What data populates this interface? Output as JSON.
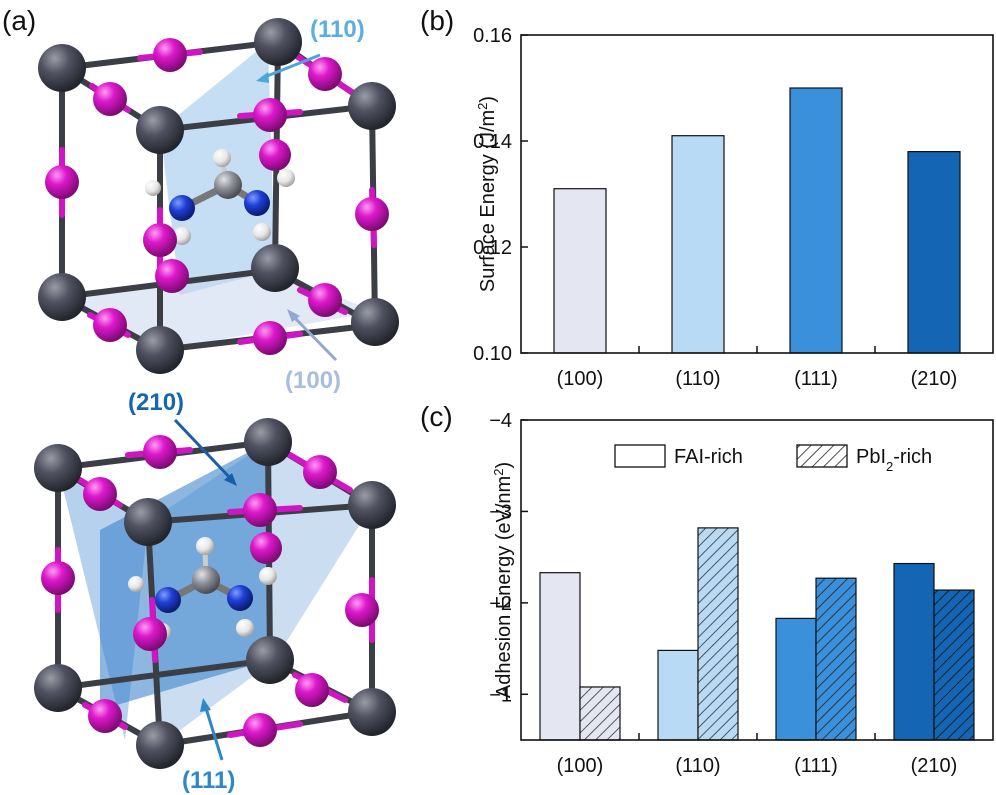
{
  "figure": {
    "panel_labels": [
      "(a)",
      "(b)",
      "(c)"
    ],
    "plane_labels": {
      "p110": "(110)",
      "p100": "(100)",
      "p210": "(210)",
      "p111": "(111)"
    },
    "plane_label_colors": {
      "p110": "#5aaee2",
      "p100": "#a9bedd",
      "p210": "#1565b0",
      "p111": "#2f86c8"
    },
    "atom_colors": {
      "lead": "#4b4d57",
      "iodine": "#d614c8",
      "nitrogen": "#1c3fd0",
      "carbon": "#8c8f96",
      "hydrogen": "#f2f2f2"
    }
  },
  "chart_data": [
    {
      "panel": "(b)",
      "type": "bar",
      "categories": [
        "(100)",
        "(110)",
        "(111)",
        "(210)"
      ],
      "values": [
        0.131,
        0.141,
        0.15,
        0.138
      ],
      "colors": [
        "#e4e7f1",
        "#b8daf4",
        "#3a90db",
        "#1466b4"
      ],
      "ylabel_main": "Surface Energy (J/m",
      "ylabel_sup": "2",
      "ylabel_close": ")",
      "ylim": [
        0.1,
        0.16
      ],
      "yticks": [
        "0.10",
        "0.12",
        "0.14",
        "0.16"
      ],
      "ytick_values": [
        0.1,
        0.12,
        0.14,
        0.16
      ]
    },
    {
      "panel": "(c)",
      "type": "bar",
      "categories": [
        "(100)",
        "(110)",
        "(111)",
        "(210)"
      ],
      "series": [
        {
          "name": "FAI-rich",
          "values": [
            -2.33,
            -1.48,
            -1.83,
            -2.43
          ],
          "pattern": "solid"
        },
        {
          "name_main": "PbI",
          "name_sub": "2",
          "name_tail": "-rich",
          "values": [
            -1.08,
            -2.82,
            -2.27,
            -2.14
          ],
          "pattern": "hatched"
        }
      ],
      "colors": [
        "#e4e7f1",
        "#b8daf4",
        "#3a90db",
        "#1466b4"
      ],
      "ylabel_main": "Adhesion Energy (eV/nm",
      "ylabel_sup": "2",
      "ylabel_close": ")",
      "ylim": [
        -0.5,
        -4
      ],
      "yticks": [
        "−1",
        "−2",
        "−3",
        "−4"
      ],
      "ytick_values": [
        -1,
        -2,
        -3,
        -4
      ]
    }
  ]
}
